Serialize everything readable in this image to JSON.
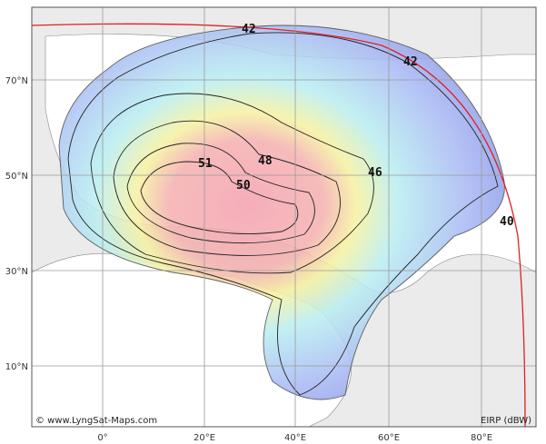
{
  "map": {
    "lon_labels": [
      "0°",
      "20°E",
      "40°E",
      "60°E",
      "80°E"
    ],
    "lat_labels": [
      "70°N",
      "50°N",
      "30°N",
      "10°N"
    ],
    "contours": [
      42,
      42,
      46,
      48,
      51,
      50,
      40
    ],
    "credit": "© www.LyngSat-Maps.com",
    "legend": "EIRP (dBW)"
  }
}
